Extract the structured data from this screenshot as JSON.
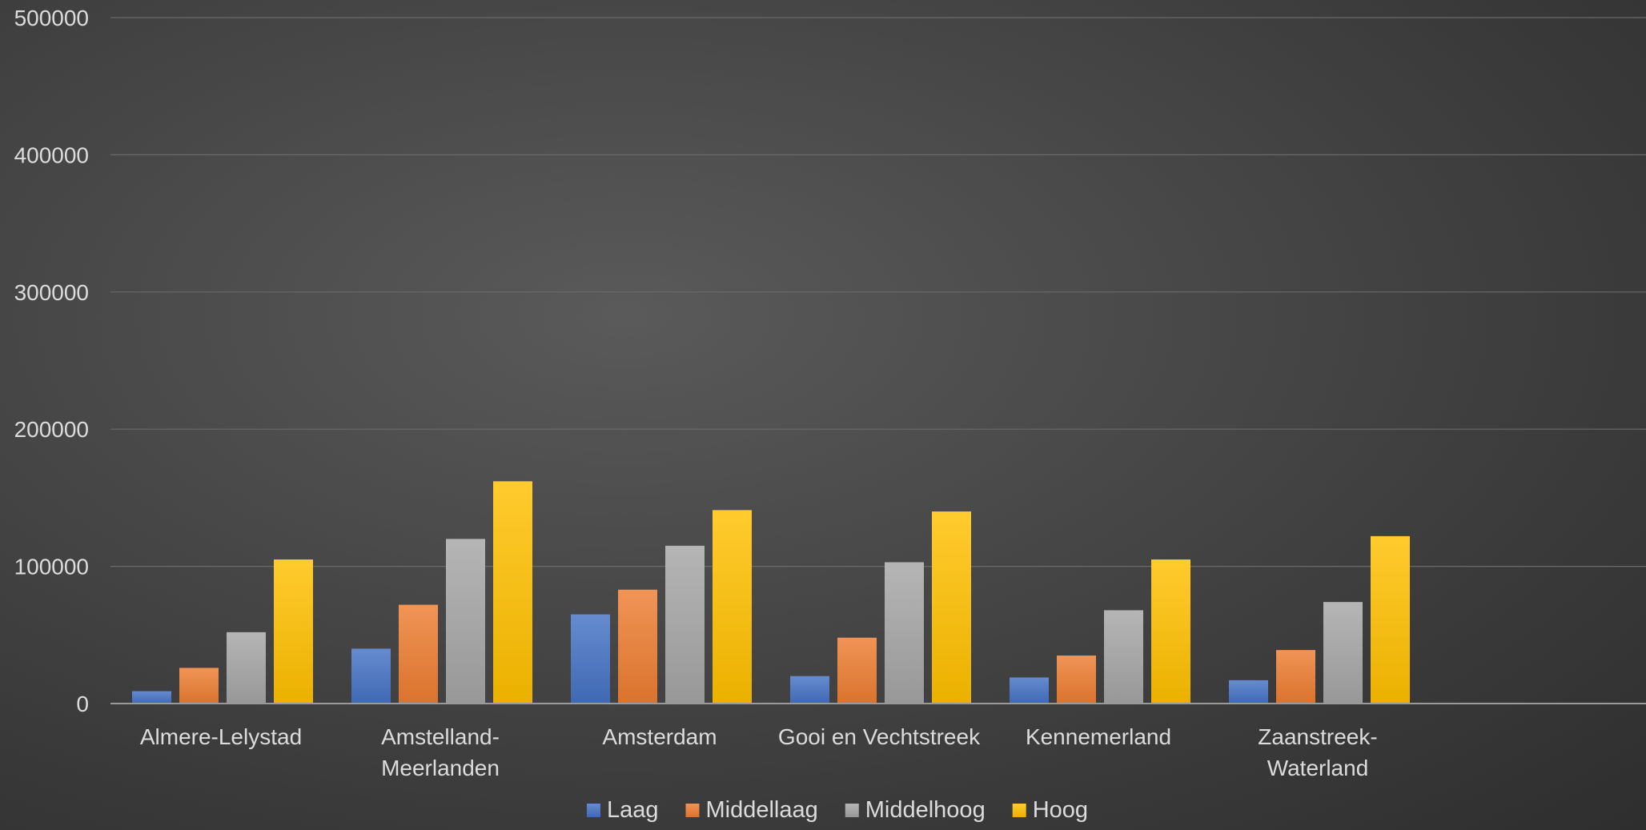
{
  "chart_data": {
    "type": "bar",
    "categories": [
      [
        "Almere-Lelystad"
      ],
      [
        "Amstelland-",
        "Meerlanden"
      ],
      [
        "Amsterdam"
      ],
      [
        "Gooi en Vechtstreek"
      ],
      [
        "Kennemerland"
      ],
      [
        "Zaanstreek-",
        "Waterland"
      ]
    ],
    "series": [
      {
        "name": "Laag",
        "color": "#4472c4",
        "values": [
          9000,
          40000,
          65000,
          20000,
          19000,
          17000
        ]
      },
      {
        "name": "Middellaag",
        "color": "#ed7d31",
        "values": [
          26000,
          72000,
          83000,
          48000,
          35000,
          39000
        ]
      },
      {
        "name": "Middelhoog",
        "color": "#a5a5a5",
        "values": [
          52000,
          120000,
          115000,
          103000,
          68000,
          74000
        ]
      },
      {
        "name": "Hoog",
        "color": "#ffc000",
        "values": [
          105000,
          162000,
          141000,
          140000,
          105000,
          122000
        ]
      }
    ],
    "yticks": [
      "0",
      "100000",
      "200000",
      "300000",
      "400000",
      "500000"
    ],
    "ylim": [
      0,
      500000
    ],
    "grid": true,
    "legend": "bottom-center",
    "title": "",
    "xlabel": "",
    "ylabel": ""
  }
}
